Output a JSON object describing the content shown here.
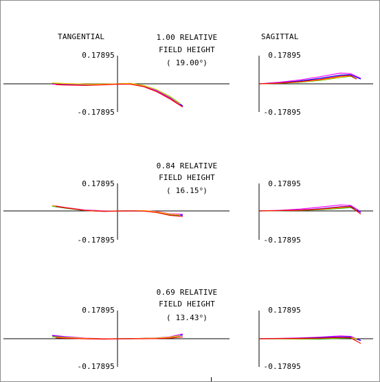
{
  "headers": {
    "tangential": "TANGENTIAL",
    "sagittal": "SAGITTAL"
  },
  "colors": {
    "series": [
      "#ff00ff",
      "#0000ff",
      "#00a000",
      "#ffd000",
      "#ff0000",
      "#7000a0"
    ],
    "axis": "#000000"
  },
  "chart_data": [
    {
      "type": "line",
      "field": {
        "line1": "1.00 RELATIVE",
        "line2": "FIELD HEIGHT",
        "angle": "19.00",
        "unit": "o"
      },
      "ylim": [
        -0.17895,
        0.17895
      ],
      "xlim": [
        -1,
        1
      ],
      "tangential": {
        "tick_top": "0.17895",
        "tick_bottom": "-0.17895",
        "series": [
          {
            "x": [
              -1.0,
              -0.8,
              -0.5,
              -0.2,
              0.0,
              0.2,
              0.4,
              0.6,
              0.8,
              1.0
            ],
            "y": [
              -0.002,
              -0.005,
              -0.006,
              -0.004,
              -0.001,
              0.0,
              -0.015,
              -0.045,
              -0.09,
              -0.143
            ]
          },
          {
            "x": [
              -1.0,
              -0.8,
              -0.5,
              -0.2,
              0.0,
              0.2,
              0.4,
              0.6,
              0.8,
              1.0
            ],
            "y": [
              0.005,
              0.0,
              -0.004,
              -0.003,
              0.0,
              0.002,
              -0.012,
              -0.04,
              -0.085,
              -0.14
            ]
          },
          {
            "x": [
              -1.0,
              -0.8,
              -0.5,
              -0.2,
              0.0,
              0.2,
              0.4,
              0.6,
              0.8,
              0.96
            ],
            "y": [
              0.004,
              0.001,
              -0.003,
              -0.002,
              0.0,
              0.003,
              -0.01,
              -0.037,
              -0.08,
              -0.125
            ]
          },
          {
            "x": [
              -1.0,
              -0.8,
              -0.5,
              -0.2,
              0.0,
              0.2,
              0.4,
              0.6,
              0.8,
              0.96
            ],
            "y": [
              0.006,
              0.002,
              -0.002,
              -0.002,
              0.0,
              0.002,
              -0.011,
              -0.038,
              -0.082,
              -0.128
            ]
          },
          {
            "x": [
              -0.95,
              -0.8,
              -0.5,
              -0.2,
              0.0,
              0.2,
              0.4,
              0.6,
              0.8,
              1.0
            ],
            "y": [
              -0.005,
              -0.008,
              -0.01,
              -0.006,
              -0.002,
              -0.002,
              -0.018,
              -0.05,
              -0.095,
              -0.148
            ]
          }
        ]
      },
      "sagittal": {
        "tick_top": "0.17895",
        "tick_bottom": "-0.17895",
        "series": [
          {
            "x": [
              0.0,
              0.2,
              0.4,
              0.6,
              0.8,
              0.9,
              1.0
            ],
            "y": [
              0.0,
              0.01,
              0.025,
              0.045,
              0.068,
              0.065,
              0.035
            ]
          },
          {
            "x": [
              0.0,
              0.2,
              0.4,
              0.6,
              0.8,
              0.9,
              1.0
            ],
            "y": [
              0.0,
              0.006,
              0.018,
              0.035,
              0.055,
              0.058,
              0.03
            ]
          },
          {
            "x": [
              0.0,
              0.2,
              0.4,
              0.6,
              0.8,
              0.9,
              0.96
            ],
            "y": [
              0.0,
              0.003,
              0.01,
              0.022,
              0.04,
              0.048,
              0.03
            ]
          },
          {
            "x": [
              0.0,
              0.2,
              0.4,
              0.6,
              0.8,
              0.9,
              0.96
            ],
            "y": [
              0.0,
              0.004,
              0.012,
              0.024,
              0.042,
              0.05,
              0.032
            ]
          },
          {
            "x": [
              0.0,
              0.2,
              0.4,
              0.6,
              0.8,
              0.9,
              0.96
            ],
            "y": [
              0.0,
              0.005,
              0.014,
              0.028,
              0.048,
              0.053,
              0.03
            ]
          }
        ]
      }
    },
    {
      "type": "line",
      "field": {
        "line1": "0.84 RELATIVE",
        "line2": "FIELD HEIGHT",
        "angle": "16.15",
        "unit": "o"
      },
      "ylim": [
        -0.17895,
        0.17895
      ],
      "xlim": [
        -1,
        1
      ],
      "tangential": {
        "tick_top": "0.17895",
        "tick_bottom": "-0.17895",
        "series": [
          {
            "x": [
              -1.0,
              -0.8,
              -0.5,
              -0.2,
              0.0,
              0.2,
              0.4,
              0.6,
              0.8,
              1.0
            ],
            "y": [
              0.035,
              0.022,
              0.006,
              0.0,
              0.0,
              0.0,
              0.002,
              -0.004,
              -0.018,
              -0.022
            ]
          },
          {
            "x": [
              -1.0,
              -0.8,
              -0.5,
              -0.2,
              0.0,
              0.2,
              0.4,
              0.6,
              0.8,
              1.0
            ],
            "y": [
              0.032,
              0.02,
              0.004,
              -0.002,
              0.0,
              0.0,
              0.0,
              -0.008,
              -0.022,
              -0.028
            ]
          },
          {
            "x": [
              -1.0,
              -0.8,
              -0.5,
              -0.2,
              0.0,
              0.2,
              0.4,
              0.6,
              0.8,
              0.96
            ],
            "y": [
              0.03,
              0.018,
              0.002,
              -0.003,
              0.0,
              0.0,
              0.0,
              -0.01,
              -0.026,
              -0.032
            ]
          },
          {
            "x": [
              -1.0,
              -0.8,
              -0.5,
              -0.2,
              0.0,
              0.2,
              0.4,
              0.6,
              0.8,
              0.96
            ],
            "y": [
              0.033,
              0.021,
              0.004,
              -0.002,
              0.0,
              0.0,
              0.002,
              -0.006,
              -0.02,
              -0.026
            ]
          },
          {
            "x": [
              -0.95,
              -0.8,
              -0.5,
              -0.2,
              0.0,
              0.2,
              0.4,
              0.6,
              0.8,
              1.0
            ],
            "y": [
              0.03,
              0.02,
              0.003,
              -0.003,
              -0.001,
              0.0,
              -0.001,
              -0.01,
              -0.028,
              -0.036
            ]
          }
        ]
      },
      "sagittal": {
        "tick_top": "0.17895",
        "tick_bottom": "-0.17895",
        "series": [
          {
            "x": [
              0.0,
              0.2,
              0.4,
              0.6,
              0.8,
              0.9,
              1.0
            ],
            "y": [
              0.0,
              0.004,
              0.012,
              0.024,
              0.038,
              0.035,
              -0.005
            ]
          },
          {
            "x": [
              0.0,
              0.2,
              0.4,
              0.6,
              0.8,
              0.9,
              1.0
            ],
            "y": [
              0.0,
              0.002,
              0.006,
              0.014,
              0.026,
              0.03,
              -0.01
            ]
          },
          {
            "x": [
              0.0,
              0.2,
              0.4,
              0.6,
              0.8,
              0.9,
              0.96
            ],
            "y": [
              0.0,
              0.001,
              0.003,
              0.008,
              0.016,
              0.022,
              0.0
            ]
          },
          {
            "x": [
              0.0,
              0.2,
              0.4,
              0.6,
              0.8,
              0.9,
              0.96
            ],
            "y": [
              0.0,
              0.002,
              0.004,
              0.01,
              0.02,
              0.026,
              0.004
            ]
          },
          {
            "x": [
              0.0,
              0.2,
              0.4,
              0.6,
              0.8,
              0.9,
              1.0
            ],
            "y": [
              0.0,
              0.002,
              0.005,
              0.012,
              0.024,
              0.028,
              -0.02
            ]
          }
        ]
      }
    },
    {
      "type": "line",
      "field": {
        "line1": "0.69 RELATIVE",
        "line2": "FIELD HEIGHT",
        "angle": "13.43",
        "unit": "o"
      },
      "ylim": [
        -0.17895,
        0.17895
      ],
      "xlim": [
        -1,
        1
      ],
      "tangential": {
        "tick_top": "0.17895",
        "tick_bottom": "-0.17895",
        "series": [
          {
            "x": [
              -1.0,
              -0.8,
              -0.5,
              -0.2,
              0.0,
              0.2,
              0.4,
              0.6,
              0.8,
              1.0
            ],
            "y": [
              0.022,
              0.013,
              0.004,
              0.0,
              0.0,
              0.0,
              0.002,
              0.005,
              0.012,
              0.03
            ]
          },
          {
            "x": [
              -1.0,
              -0.8,
              -0.5,
              -0.2,
              0.0,
              0.2,
              0.4,
              0.6,
              0.8,
              1.0
            ],
            "y": [
              0.018,
              0.01,
              0.002,
              -0.001,
              0.0,
              0.001,
              0.002,
              0.004,
              0.01,
              0.024
            ]
          },
          {
            "x": [
              -1.0,
              -0.8,
              -0.5,
              -0.2,
              0.0,
              0.2,
              0.4,
              0.6,
              0.8,
              0.96
            ],
            "y": [
              0.012,
              0.007,
              0.001,
              -0.002,
              0.0,
              0.0,
              0.001,
              0.003,
              0.008,
              0.018
            ]
          },
          {
            "x": [
              -1.0,
              -0.8,
              -0.5,
              -0.2,
              0.0,
              0.2,
              0.4,
              0.6,
              0.8,
              0.96
            ],
            "y": [
              0.014,
              0.008,
              0.002,
              -0.001,
              0.0,
              0.001,
              0.002,
              0.004,
              0.009,
              0.02
            ]
          },
          {
            "x": [
              -0.95,
              -0.8,
              -0.5,
              -0.2,
              0.0,
              0.2,
              0.4,
              0.6,
              0.8,
              1.0
            ],
            "y": [
              0.006,
              0.003,
              -0.001,
              -0.002,
              -0.001,
              0.0,
              0.0,
              0.001,
              0.004,
              0.012
            ]
          }
        ]
      },
      "sagittal": {
        "tick_top": "0.17895",
        "tick_bottom": "-0.17895",
        "series": [
          {
            "x": [
              0.0,
              0.2,
              0.4,
              0.6,
              0.8,
              0.9,
              1.0
            ],
            "y": [
              0.0,
              0.002,
              0.005,
              0.01,
              0.018,
              0.015,
              -0.01
            ]
          },
          {
            "x": [
              0.0,
              0.2,
              0.4,
              0.6,
              0.8,
              0.9,
              1.0
            ],
            "y": [
              0.0,
              0.001,
              0.003,
              0.007,
              0.012,
              0.012,
              -0.012
            ]
          },
          {
            "x": [
              0.0,
              0.2,
              0.4,
              0.6,
              0.8,
              0.9,
              0.96
            ],
            "y": [
              0.0,
              -0.001,
              -0.002,
              -0.002,
              0.002,
              0.004,
              -0.004
            ]
          },
          {
            "x": [
              0.0,
              0.2,
              0.4,
              0.6,
              0.8,
              0.9,
              0.96
            ],
            "y": [
              0.0,
              0.0,
              0.0,
              0.002,
              0.006,
              0.007,
              0.0
            ]
          },
          {
            "x": [
              0.0,
              0.2,
              0.4,
              0.6,
              0.8,
              0.9,
              1.0
            ],
            "y": [
              0.0,
              0.001,
              0.002,
              0.004,
              0.008,
              0.006,
              -0.03
            ]
          }
        ]
      }
    }
  ]
}
